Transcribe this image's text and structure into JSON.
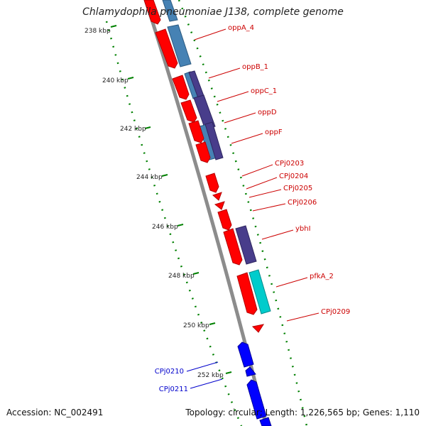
{
  "title": "Chlamydophila pneumoniae J138, complete genome",
  "footer": {
    "accession": "Accession: NC_002491",
    "summary": "Topology: circular; Length: 1,226,565 bp; Genes: 1,110"
  },
  "colors": {
    "strand_forward": "#ff0000",
    "strand_reverse": "#0000ff",
    "cog_steelblue": "#4682b4",
    "cog_darkslate": "#483d8b",
    "cog_cyan": "#00cccc",
    "backbone": "#888888",
    "ticks": "#008000",
    "label_forward": "#cc0000",
    "label_reverse": "#0000cc"
  },
  "kbp_ticks": [
    "238 kbp",
    "240 kbp",
    "242 kbp",
    "244 kbp",
    "246 kbp",
    "248 kbp",
    "250 kbp",
    "252 kbp"
  ],
  "genes": [
    {
      "name": "oppA_4",
      "strand": "forward",
      "cog": "steelblue"
    },
    {
      "name": "oppB_1",
      "strand": "forward",
      "cog": "darkslate"
    },
    {
      "name": "oppC_1",
      "strand": "forward",
      "cog": "darkslate"
    },
    {
      "name": "oppD",
      "strand": "forward",
      "cog": "steelblue"
    },
    {
      "name": "oppF",
      "strand": "forward",
      "cog": "darkslate"
    },
    {
      "name": "CPj0203",
      "strand": "forward",
      "cog": ""
    },
    {
      "name": "CPj0204",
      "strand": "forward",
      "cog": ""
    },
    {
      "name": "CPj0205",
      "strand": "forward",
      "cog": ""
    },
    {
      "name": "CPj0206",
      "strand": "forward",
      "cog": ""
    },
    {
      "name": "ybhI",
      "strand": "forward",
      "cog": "darkslate"
    },
    {
      "name": "pfkA_2",
      "strand": "forward",
      "cog": "cyan"
    },
    {
      "name": "CPj0209",
      "strand": "forward",
      "cog": ""
    },
    {
      "name": "CPj0210",
      "strand": "reverse",
      "cog": ""
    },
    {
      "name": "CPj0211",
      "strand": "reverse",
      "cog": ""
    }
  ]
}
